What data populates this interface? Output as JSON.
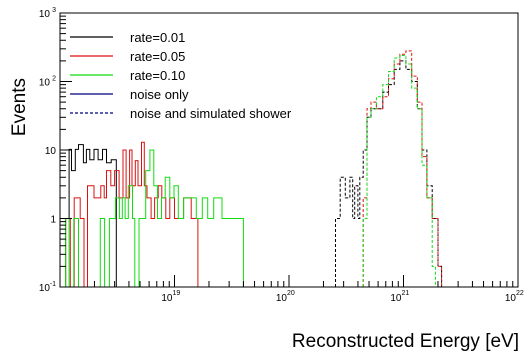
{
  "chart_data": {
    "type": "step-histogram",
    "xlabel": "Reconstructed Energy [eV]",
    "ylabel": "Events",
    "x_scale": "log",
    "y_scale": "log",
    "xlim_eV": [
      1e+18,
      1e+22
    ],
    "ylim": [
      0.1,
      1000
    ],
    "x_ticks": [
      {
        "base": "10",
        "exp": "19",
        "value": 1e+19
      },
      {
        "base": "10",
        "exp": "20",
        "value": 1e+20
      },
      {
        "base": "10",
        "exp": "21",
        "value": 1e+21
      },
      {
        "base": "10",
        "exp": "22",
        "value": 1e+22
      }
    ],
    "y_ticks": [
      {
        "label": "10",
        "exp": "-1",
        "value": 0.1
      },
      {
        "label": "1",
        "exp": "",
        "value": 1
      },
      {
        "label": "10",
        "exp": "",
        "value": 10
      },
      {
        "label": "10",
        "exp": "2",
        "value": 100
      },
      {
        "label": "10",
        "exp": "3",
        "value": 1000
      }
    ],
    "legend_position": "top-left",
    "legend": [
      {
        "label": "rate=0.01",
        "color": "#000000",
        "style": "solid"
      },
      {
        "label": "rate=0.05",
        "color": "#dd1111",
        "style": "solid"
      },
      {
        "label": "rate=0.10",
        "color": "#11dd11",
        "style": "solid"
      },
      {
        "label": "noise only",
        "color": "#000080",
        "style": "solid"
      },
      {
        "label": "noise and simulated shower",
        "color": "#000080",
        "style": "dashed"
      }
    ],
    "series": [
      {
        "rate": "0.01",
        "component": "noise only",
        "color": "#000000",
        "dash": false,
        "bins": [
          {
            "lo": 1.12e+18,
            "hi": 1.2e+18,
            "y": 1.0
          },
          {
            "lo": 1.2e+18,
            "hi": 1.26e+18,
            "y": 10.2
          },
          {
            "lo": 1.26e+18,
            "hi": 1.36e+18,
            "y": 5.0
          },
          {
            "lo": 1.36e+18,
            "hi": 1.45e+18,
            "y": 10.2
          },
          {
            "lo": 1.45e+18,
            "hi": 1.6e+18,
            "y": 12.0
          },
          {
            "lo": 1.6e+18,
            "hi": 1.7e+18,
            "y": 6.5
          },
          {
            "lo": 1.7e+18,
            "hi": 1.82e+18,
            "y": 10.2
          },
          {
            "lo": 1.82e+18,
            "hi": 1.98e+18,
            "y": 7.2
          },
          {
            "lo": 1.98e+18,
            "hi": 2.15e+18,
            "y": 10.2
          },
          {
            "lo": 2.15e+18,
            "hi": 2.35e+18,
            "y": 7.2
          },
          {
            "lo": 2.35e+18,
            "hi": 2.55e+18,
            "y": 10.2
          },
          {
            "lo": 2.55e+18,
            "hi": 2.8e+18,
            "y": 6.5
          },
          {
            "lo": 2.8e+18,
            "hi": 3.1e+18,
            "y": 7.2
          }
        ]
      },
      {
        "rate": "0.05",
        "component": "noise only",
        "color": "#dd1111",
        "dash": false,
        "bins": [
          {
            "lo": 1.12e+18,
            "hi": 1.23e+18,
            "y": 1.0
          },
          {
            "lo": 1.23e+18,
            "hi": 1.33e+18,
            "y": 0.1
          },
          {
            "lo": 1.33e+18,
            "hi": 1.5e+18,
            "y": 2.0
          },
          {
            "lo": 1.5e+18,
            "hi": 1.62e+18,
            "y": 1.0
          },
          {
            "lo": 1.62e+18,
            "hi": 1.74e+18,
            "y": 0.1
          },
          {
            "lo": 1.74e+18,
            "hi": 1.98e+18,
            "y": 3.0
          },
          {
            "lo": 1.98e+18,
            "hi": 2.27e+18,
            "y": 2.0
          },
          {
            "lo": 2.27e+18,
            "hi": 2.43e+18,
            "y": 3.0
          },
          {
            "lo": 2.43e+18,
            "hi": 2.55e+18,
            "y": 2.0
          },
          {
            "lo": 2.55e+18,
            "hi": 2.78e+18,
            "y": 5.0
          },
          {
            "lo": 2.78e+18,
            "hi": 3e+18,
            "y": 3.0
          },
          {
            "lo": 3e+18,
            "hi": 3.28e+18,
            "y": 5.0
          },
          {
            "lo": 3.28e+18,
            "hi": 3.55e+18,
            "y": 2.0
          },
          {
            "lo": 3.55e+18,
            "hi": 3.78e+18,
            "y": 10.0
          },
          {
            "lo": 3.78e+18,
            "hi": 4.05e+18,
            "y": 2.0
          },
          {
            "lo": 4.05e+18,
            "hi": 4.25e+18,
            "y": 10.0
          },
          {
            "lo": 4.25e+18,
            "hi": 4.55e+18,
            "y": 3.0
          },
          {
            "lo": 4.55e+18,
            "hi": 4.8e+18,
            "y": 7.0
          },
          {
            "lo": 4.8e+18,
            "hi": 5.15e+18,
            "y": 3.0
          },
          {
            "lo": 5.15e+18,
            "hi": 5.45e+18,
            "y": 13.0
          },
          {
            "lo": 5.45e+18,
            "hi": 5.75e+18,
            "y": 3.0
          },
          {
            "lo": 5.75e+18,
            "hi": 6.25e+18,
            "y": 2.0
          },
          {
            "lo": 6.25e+18,
            "hi": 6.7e+18,
            "y": 1.0
          },
          {
            "lo": 6.7e+18,
            "hi": 7.2e+18,
            "y": 2.0
          },
          {
            "lo": 7.2e+18,
            "hi": 7.75e+18,
            "y": 3.0
          },
          {
            "lo": 7.75e+18,
            "hi": 8.4e+18,
            "y": 2.0
          },
          {
            "lo": 8.4e+18,
            "hi": 9.1e+18,
            "y": 1.0
          },
          {
            "lo": 9.1e+18,
            "hi": 1e+19,
            "y": 2.0
          },
          {
            "lo": 1e+19,
            "hi": 1.2e+19,
            "y": 1.0
          },
          {
            "lo": 1.2e+19,
            "hi": 1.4e+19,
            "y": 2.0
          },
          {
            "lo": 1.4e+19,
            "hi": 1.6e+19,
            "y": 1.0
          }
        ]
      },
      {
        "rate": "0.10",
        "component": "noise only",
        "color": "#11dd11",
        "dash": false,
        "bins": [
          {
            "lo": 1.12e+18,
            "hi": 1.2e+18,
            "y": 1.0
          },
          {
            "lo": 1.2e+18,
            "hi": 1.32e+18,
            "y": 0.1
          },
          {
            "lo": 1.32e+18,
            "hi": 1.45e+18,
            "y": 1.0
          },
          {
            "lo": 1.45e+18,
            "hi": 2.25e+18,
            "y": 0.1
          },
          {
            "lo": 2.25e+18,
            "hi": 2.45e+18,
            "y": 1.0
          },
          {
            "lo": 2.45e+18,
            "hi": 2.7e+18,
            "y": 0.1
          },
          {
            "lo": 2.7e+18,
            "hi": 3.05e+18,
            "y": 1.0
          },
          {
            "lo": 3.05e+18,
            "hi": 3.3e+18,
            "y": 2.0
          },
          {
            "lo": 3.3e+18,
            "hi": 3.5e+18,
            "y": 1.0
          },
          {
            "lo": 3.5e+18,
            "hi": 3.7e+18,
            "y": 2.0
          },
          {
            "lo": 3.7e+18,
            "hi": 3.95e+18,
            "y": 1.0
          },
          {
            "lo": 3.95e+18,
            "hi": 4.3e+18,
            "y": 3.0
          },
          {
            "lo": 4.3e+18,
            "hi": 4.5e+18,
            "y": 1.0
          },
          {
            "lo": 4.5e+18,
            "hi": 4.9e+18,
            "y": 0.1
          },
          {
            "lo": 4.9e+18,
            "hi": 5.6e+18,
            "y": 1.0
          },
          {
            "lo": 5.6e+18,
            "hi": 6.1e+18,
            "y": 5.0
          },
          {
            "lo": 6.1e+18,
            "hi": 6.6e+18,
            "y": 10.0
          },
          {
            "lo": 6.6e+18,
            "hi": 7.1e+18,
            "y": 3.0
          },
          {
            "lo": 7.1e+18,
            "hi": 7.7e+18,
            "y": 1.0
          },
          {
            "lo": 7.7e+18,
            "hi": 8.3e+18,
            "y": 2.0
          },
          {
            "lo": 8.3e+18,
            "hi": 9.1e+18,
            "y": 4.0
          },
          {
            "lo": 9.1e+18,
            "hi": 9.9e+18,
            "y": 2.0
          },
          {
            "lo": 9.9e+18,
            "hi": 1.08e+19,
            "y": 3.0
          },
          {
            "lo": 1.08e+19,
            "hi": 1.2e+19,
            "y": 1.0
          },
          {
            "lo": 1.2e+19,
            "hi": 1.35e+19,
            "y": 2.0
          },
          {
            "lo": 1.35e+19,
            "hi": 1.55e+19,
            "y": 2.0
          },
          {
            "lo": 1.55e+19,
            "hi": 1.75e+19,
            "y": 1.0
          },
          {
            "lo": 1.75e+19,
            "hi": 1.95e+19,
            "y": 2.0
          },
          {
            "lo": 1.95e+19,
            "hi": 2.2e+19,
            "y": 1.0
          },
          {
            "lo": 2.2e+19,
            "hi": 2.6e+19,
            "y": 2.0
          },
          {
            "lo": 2.6e+19,
            "hi": 3.1e+19,
            "y": 1.0
          },
          {
            "lo": 3.1e+19,
            "hi": 3.6e+19,
            "y": 1.0
          },
          {
            "lo": 3.6e+19,
            "hi": 4e+19,
            "y": 1.0
          }
        ]
      },
      {
        "rate": "0.01",
        "component": "noise and simulated shower",
        "color": "#000000",
        "dash": true,
        "bins": [
          {
            "lo": 2.55e+20,
            "hi": 2.8e+20,
            "y": 1.0
          },
          {
            "lo": 2.8e+20,
            "hi": 3.1e+20,
            "y": 4.0
          },
          {
            "lo": 3.1e+20,
            "hi": 3.4e+20,
            "y": 2.0
          },
          {
            "lo": 3.4e+20,
            "hi": 3.6e+20,
            "y": 4.0
          },
          {
            "lo": 3.6e+20,
            "hi": 3.75e+20,
            "y": 1.0
          },
          {
            "lo": 3.75e+20,
            "hi": 4e+20,
            "y": 3.0
          },
          {
            "lo": 4e+20,
            "hi": 4.15e+20,
            "y": 1.0
          },
          {
            "lo": 4.15e+20,
            "hi": 4.45e+20,
            "y": 4.0
          },
          {
            "lo": 4.45e+20,
            "hi": 4.8e+20,
            "y": 10.0
          },
          {
            "lo": 4.8e+20,
            "hi": 5.2e+20,
            "y": 30.0
          },
          {
            "lo": 5.2e+20,
            "hi": 5.8e+20,
            "y": 40.0
          },
          {
            "lo": 5.8e+20,
            "hi": 6.6e+20,
            "y": 40.0
          },
          {
            "lo": 6.6e+20,
            "hi": 7.4e+20,
            "y": 70.0
          },
          {
            "lo": 7.4e+20,
            "hi": 8.3e+20,
            "y": 90.0
          },
          {
            "lo": 8.3e+20,
            "hi": 9.3e+20,
            "y": 150.0
          },
          {
            "lo": 9.3e+20,
            "hi": 1.05e+21,
            "y": 200.0
          },
          {
            "lo": 1.05e+21,
            "hi": 1.18e+21,
            "y": 150.0
          },
          {
            "lo": 1.18e+21,
            "hi": 1.32e+21,
            "y": 100.0
          },
          {
            "lo": 1.32e+21,
            "hi": 1.45e+21,
            "y": 40.0
          },
          {
            "lo": 1.45e+21,
            "hi": 1.6e+21,
            "y": 10.0
          },
          {
            "lo": 1.6e+21,
            "hi": 1.78e+21,
            "y": 3.0
          },
          {
            "lo": 1.78e+21,
            "hi": 2e+21,
            "y": 1.0
          },
          {
            "lo": 2e+21,
            "hi": 2.15e+21,
            "y": 0.2
          }
        ]
      },
      {
        "rate": "0.05",
        "component": "noise and simulated shower",
        "color": "#dd1111",
        "dash": true,
        "bins": [
          {
            "lo": 4.45e+20,
            "hi": 4.8e+20,
            "y": 2.0
          },
          {
            "lo": 4.8e+20,
            "hi": 5.2e+20,
            "y": 40.0
          },
          {
            "lo": 5.2e+20,
            "hi": 5.8e+20,
            "y": 50.0
          },
          {
            "lo": 5.8e+20,
            "hi": 6.6e+20,
            "y": 40.0
          },
          {
            "lo": 6.6e+20,
            "hi": 7.4e+20,
            "y": 60.0
          },
          {
            "lo": 7.4e+20,
            "hi": 8.3e+20,
            "y": 110.0
          },
          {
            "lo": 8.3e+20,
            "hi": 9.3e+20,
            "y": 180.0
          },
          {
            "lo": 9.3e+20,
            "hi": 1.05e+21,
            "y": 250.0
          },
          {
            "lo": 1.05e+21,
            "hi": 1.18e+21,
            "y": 280.0
          },
          {
            "lo": 1.18e+21,
            "hi": 1.32e+21,
            "y": 120.0
          },
          {
            "lo": 1.32e+21,
            "hi": 1.45e+21,
            "y": 50.0
          },
          {
            "lo": 1.45e+21,
            "hi": 1.6e+21,
            "y": 8.0
          },
          {
            "lo": 1.6e+21,
            "hi": 1.78e+21,
            "y": 2.0
          },
          {
            "lo": 1.78e+21,
            "hi": 2e+21,
            "y": 1.0
          },
          {
            "lo": 2e+21,
            "hi": 2.15e+21,
            "y": 0.2
          }
        ]
      },
      {
        "rate": "0.10",
        "component": "noise and simulated shower",
        "color": "#11dd11",
        "dash": true,
        "bins": [
          {
            "lo": 4.45e+20,
            "hi": 4.8e+20,
            "y": 1.0
          },
          {
            "lo": 4.8e+20,
            "hi": 5.2e+20,
            "y": 30.0
          },
          {
            "lo": 5.2e+20,
            "hi": 5.8e+20,
            "y": 40.0
          },
          {
            "lo": 5.8e+20,
            "hi": 6.6e+20,
            "y": 60.0
          },
          {
            "lo": 6.6e+20,
            "hi": 7.4e+20,
            "y": 90.0
          },
          {
            "lo": 7.4e+20,
            "hi": 8.3e+20,
            "y": 140.0
          },
          {
            "lo": 8.3e+20,
            "hi": 9.3e+20,
            "y": 220.0
          },
          {
            "lo": 9.3e+20,
            "hi": 1.05e+21,
            "y": 240.0
          },
          {
            "lo": 1.05e+21,
            "hi": 1.18e+21,
            "y": 180.0
          },
          {
            "lo": 1.18e+21,
            "hi": 1.32e+21,
            "y": 80.0
          },
          {
            "lo": 1.32e+21,
            "hi": 1.45e+21,
            "y": 40.0
          },
          {
            "lo": 1.45e+21,
            "hi": 1.6e+21,
            "y": 6.0
          },
          {
            "lo": 1.6e+21,
            "hi": 1.78e+21,
            "y": 2.0
          },
          {
            "lo": 1.78e+21,
            "hi": 1.9e+21,
            "y": 0.2
          }
        ]
      }
    ]
  }
}
